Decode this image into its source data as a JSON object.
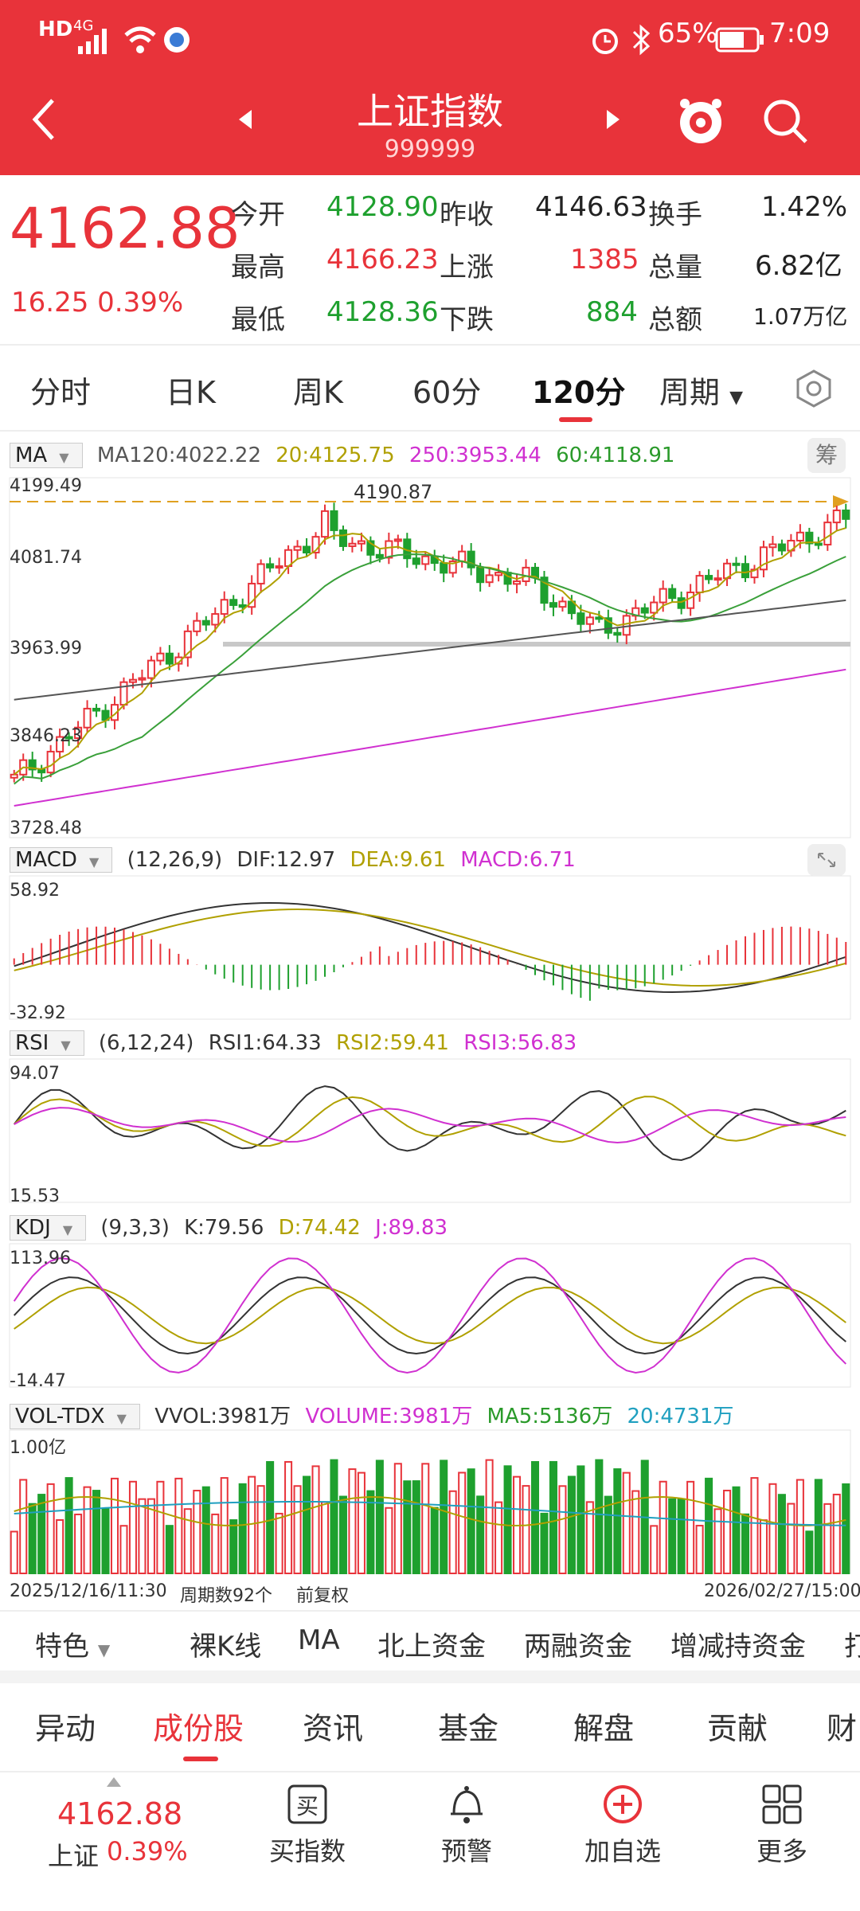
{
  "status_bar": {
    "left_icons": [
      "HD",
      "4G",
      "signal-icon",
      "wifi-icon",
      "app-notif-icon"
    ],
    "battery": "65%",
    "time": "7:09"
  },
  "header": {
    "title": "上证指数",
    "code": "999999"
  },
  "quote": {
    "price": "4162.88",
    "change": "16.25",
    "change_pct": "0.39%",
    "open_label": "今开",
    "open": "4128.90",
    "prev_close_label": "昨收",
    "prev_close": "4146.63",
    "turnover_label": "换手",
    "turnover": "1.42%",
    "high_label": "最高",
    "high": "4166.23",
    "up_label": "上涨",
    "up": "1385",
    "volume_label": "总量",
    "volume": "6.82亿",
    "low_label": "最低",
    "low": "4128.36",
    "down_label": "下跌",
    "down": "884",
    "amount_label": "总额",
    "amount": "1.07万亿"
  },
  "period_tabs": {
    "t1": "分时",
    "t2": "日K",
    "t3": "周K",
    "t4": "60分",
    "t5": "120分",
    "t6": "周期",
    "active": "120分"
  },
  "ma": {
    "name": "MA",
    "ma120": "MA120:4022.22",
    "ma20": "20:4125.75",
    "ma250": "250:3953.44",
    "ma60": "60:4118.91",
    "chip_btn": "筹",
    "y_top": "4199.49",
    "y_mid": "4081.74",
    "y_low": "3963.99",
    "y_lower": "3846.23",
    "y_bottom": "3728.48",
    "peak_label": "4190.87"
  },
  "macd": {
    "name": "MACD",
    "params": "(12,26,9)",
    "dif": "DIF:12.97",
    "dea": "DEA:9.61",
    "macd": "MACD:6.71",
    "y_top": "58.92",
    "y_bottom": "-32.92"
  },
  "rsi": {
    "name": "RSI",
    "params": "(6,12,24)",
    "rsi1": "RSI1:64.33",
    "rsi2": "RSI2:59.41",
    "rsi3": "RSI3:56.83",
    "y_top": "94.07",
    "y_bottom": "15.53"
  },
  "kdj": {
    "name": "KDJ",
    "params": "(9,3,3)",
    "k": "K:79.56",
    "d": "D:74.42",
    "j": "J:89.83",
    "y_top": "113.96",
    "y_bottom": "-14.47"
  },
  "vol": {
    "name": "VOL-TDX",
    "vvol": "VVOL:3981万",
    "volume": "VOLUME:3981万",
    "ma5": "MA5:5136万",
    "ma20": "20:4731万",
    "y_top": "1.00亿"
  },
  "footer_axis": {
    "start": "2025/12/16/11:30",
    "count": "周期数92个",
    "adjust": "前复权",
    "end": "2026/02/27/15:00"
  },
  "features": {
    "f1": "特色",
    "f2": "裸K线",
    "f3": "MA",
    "f4": "北上资金",
    "f5": "两融资金",
    "f6": "增减持资金",
    "f7": "打"
  },
  "bottom_tabs": {
    "b1": "异动",
    "b2": "成份股",
    "b3": "资讯",
    "b4": "基金",
    "b5": "解盘",
    "b6": "贡献",
    "b7": "财"
  },
  "bottom_nav": {
    "index_price": "4162.88",
    "index_name": "上证",
    "index_pct": "0.39%",
    "buy": "买指数",
    "buy_glyph": "买",
    "alert": "预警",
    "add": "加自选",
    "more": "更多"
  },
  "colors": {
    "brand_red": "#e8333a",
    "up_red": "#e8333a",
    "down_green": "#1ea02e",
    "ma20_olive": "#b0a000",
    "ma60_green": "#3aa03a",
    "ma120_gray": "#555555",
    "ma250_magenta": "#d030d0"
  }
}
